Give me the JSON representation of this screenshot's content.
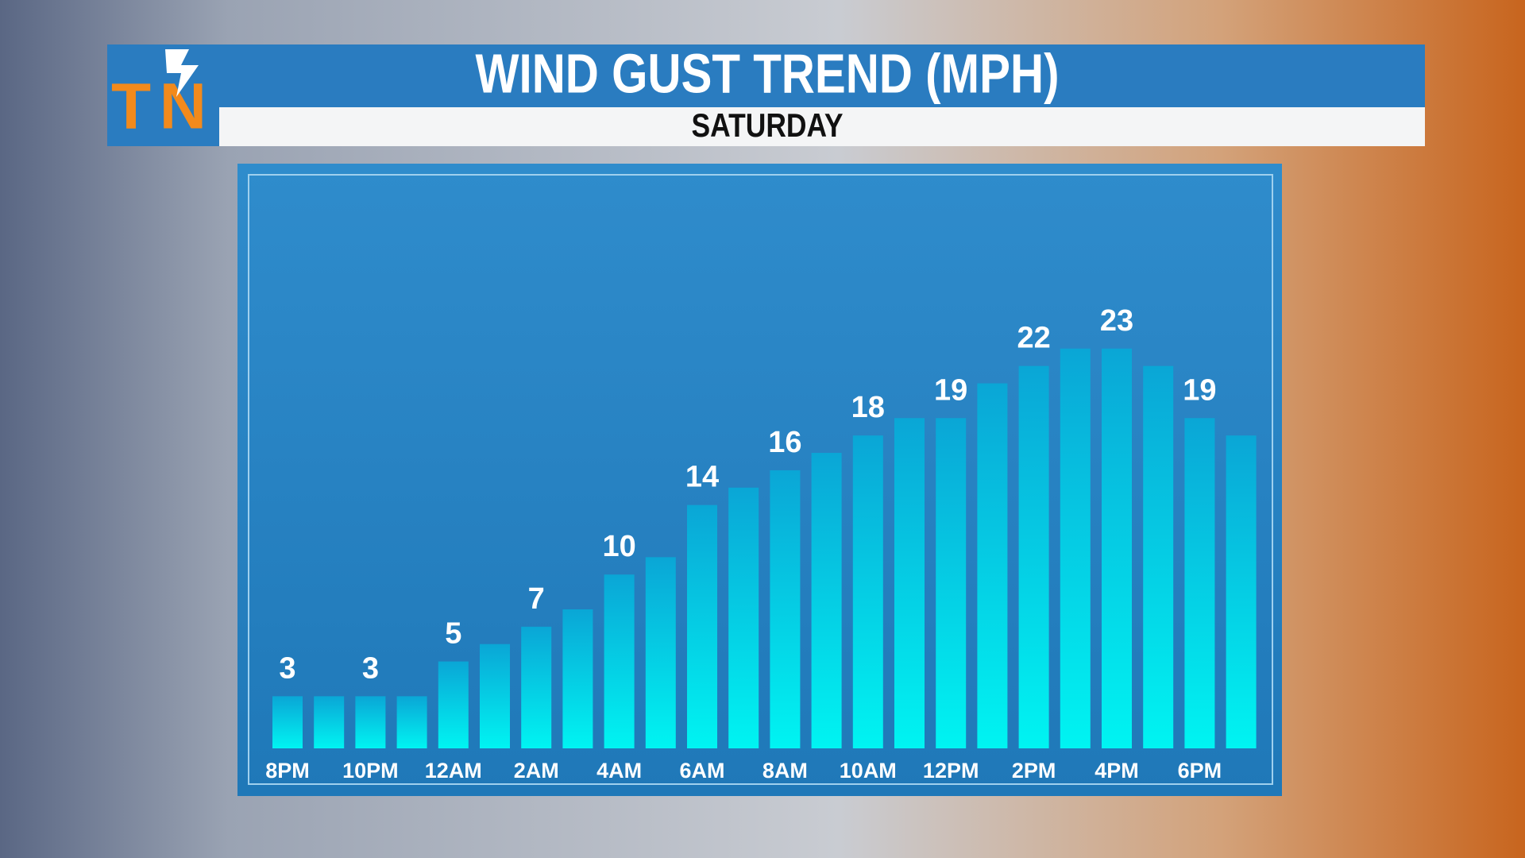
{
  "chart_data": {
    "type": "bar",
    "title": "WIND GUST TREND (MPH)",
    "subtitle": "SATURDAY",
    "categories": [
      "8PM",
      null,
      "10PM",
      null,
      "12AM",
      null,
      "2AM",
      null,
      "4AM",
      null,
      "6AM",
      null,
      "8AM",
      null,
      "10AM",
      null,
      "12PM",
      null,
      "2PM",
      null,
      "4PM",
      null,
      "6PM",
      null
    ],
    "values": [
      3,
      3,
      3,
      3,
      5,
      6,
      7,
      8,
      10,
      11,
      14,
      15,
      16,
      17,
      18,
      19,
      19,
      21,
      22,
      23,
      23,
      22,
      19,
      18
    ],
    "ylim": [
      0,
      33
    ],
    "color": "#00eef0"
  }
}
